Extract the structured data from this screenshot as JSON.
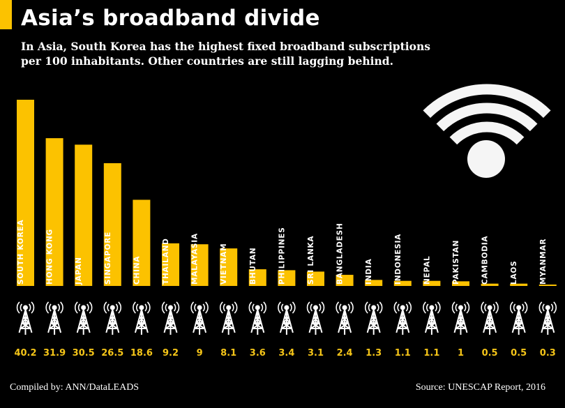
{
  "title": "Asia’s broadband divide",
  "subtitle": "In Asia, South Korea has the highest fixed broadband subscriptions per 100 inhabitants. Other countries are still lagging behind.",
  "footer": {
    "left": "Compiled by: ANN/DataLEADS",
    "right": "Source: UNESCAP Report, 2016"
  },
  "colors": {
    "bar": "#fcc200",
    "background": "#000000",
    "text": "#ffffff",
    "value_label": "#f5c518"
  },
  "icons": {
    "header": "wifi-icon",
    "per_bar": "radio-tower-icon"
  },
  "chart_data": {
    "type": "bar",
    "categories": [
      "SOUTH KOREA",
      "HONG KONG",
      "JAPAN",
      "SINGAPORE",
      "CHINA",
      "THAILAND",
      "MALAYASIA",
      "VIETNAM",
      "BHUTAN",
      "PHILIPPINES",
      "SRI LANKA",
      "BANGLADESH",
      "INDIA",
      "INDONESIA",
      "NEPAL",
      "PAKISTAN",
      "CAMBODIA",
      "LAOS",
      "MYANMAR"
    ],
    "values": [
      40.2,
      31.9,
      30.5,
      26.5,
      18.6,
      9.2,
      9,
      8.1,
      3.6,
      3.4,
      3.1,
      2.4,
      1.3,
      1.1,
      1.1,
      1,
      0.5,
      0.5,
      0.3
    ],
    "value_labels": [
      "40.2",
      "31.9",
      "30.5",
      "26.5",
      "18.6",
      "9.2",
      "9",
      "8.1",
      "3.6",
      "3.4",
      "3.1",
      "2.4",
      "1.3",
      "1.1",
      "1.1",
      "1",
      "0.5",
      "0.5",
      "0.3"
    ],
    "ylabel": "Fixed broadband subscriptions per 100 inhabitants",
    "grid": false,
    "legend": "none"
  }
}
